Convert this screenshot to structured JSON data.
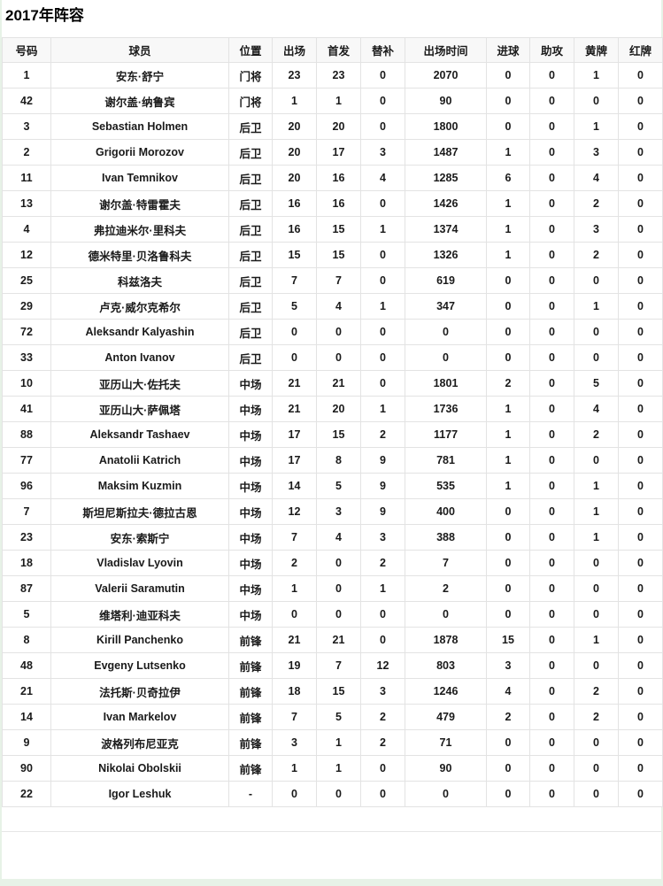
{
  "page": {
    "title": "2017年阵容"
  },
  "colors": {
    "page_background": "#e7f2e7",
    "card_background": "#ffffff",
    "header_background": "#f8f8f8",
    "border": "#e3e3e3",
    "text": "#1a1a1a"
  },
  "table": {
    "columns": [
      {
        "key": "number",
        "label": "号码"
      },
      {
        "key": "player",
        "label": "球员"
      },
      {
        "key": "position",
        "label": "位置"
      },
      {
        "key": "appearances",
        "label": "出场"
      },
      {
        "key": "starts",
        "label": "首发"
      },
      {
        "key": "subs",
        "label": "替补"
      },
      {
        "key": "minutes",
        "label": "出场时间"
      },
      {
        "key": "goals",
        "label": "进球"
      },
      {
        "key": "assists",
        "label": "助攻"
      },
      {
        "key": "yellow",
        "label": "黄牌"
      },
      {
        "key": "red",
        "label": "红牌"
      }
    ],
    "rows": [
      [
        "1",
        "安东·舒宁",
        "门将",
        "23",
        "23",
        "0",
        "2070",
        "0",
        "0",
        "1",
        "0"
      ],
      [
        "42",
        "谢尔盖·纳鲁宾",
        "门将",
        "1",
        "1",
        "0",
        "90",
        "0",
        "0",
        "0",
        "0"
      ],
      [
        "3",
        "Sebastian Holmen",
        "后卫",
        "20",
        "20",
        "0",
        "1800",
        "0",
        "0",
        "1",
        "0"
      ],
      [
        "2",
        "Grigorii Morozov",
        "后卫",
        "20",
        "17",
        "3",
        "1487",
        "1",
        "0",
        "3",
        "0"
      ],
      [
        "11",
        "Ivan Temnikov",
        "后卫",
        "20",
        "16",
        "4",
        "1285",
        "6",
        "0",
        "4",
        "0"
      ],
      [
        "13",
        "谢尔盖·特雷霍夫",
        "后卫",
        "16",
        "16",
        "0",
        "1426",
        "1",
        "0",
        "2",
        "0"
      ],
      [
        "4",
        "弗拉迪米尔·里科夫",
        "后卫",
        "16",
        "15",
        "1",
        "1374",
        "1",
        "0",
        "3",
        "0"
      ],
      [
        "12",
        "德米特里·贝洛鲁科夫",
        "后卫",
        "15",
        "15",
        "0",
        "1326",
        "1",
        "0",
        "2",
        "0"
      ],
      [
        "25",
        "科兹洛夫",
        "后卫",
        "7",
        "7",
        "0",
        "619",
        "0",
        "0",
        "0",
        "0"
      ],
      [
        "29",
        "卢克·威尔克希尔",
        "后卫",
        "5",
        "4",
        "1",
        "347",
        "0",
        "0",
        "1",
        "0"
      ],
      [
        "72",
        "Aleksandr Kalyashin",
        "后卫",
        "0",
        "0",
        "0",
        "0",
        "0",
        "0",
        "0",
        "0"
      ],
      [
        "33",
        "Anton Ivanov",
        "后卫",
        "0",
        "0",
        "0",
        "0",
        "0",
        "0",
        "0",
        "0"
      ],
      [
        "10",
        "亚历山大·佐托夫",
        "中场",
        "21",
        "21",
        "0",
        "1801",
        "2",
        "0",
        "5",
        "0"
      ],
      [
        "41",
        "亚历山大·萨佩塔",
        "中场",
        "21",
        "20",
        "1",
        "1736",
        "1",
        "0",
        "4",
        "0"
      ],
      [
        "88",
        "Aleksandr Tashaev",
        "中场",
        "17",
        "15",
        "2",
        "1177",
        "1",
        "0",
        "2",
        "0"
      ],
      [
        "77",
        "Anatolii Katrich",
        "中场",
        "17",
        "8",
        "9",
        "781",
        "1",
        "0",
        "0",
        "0"
      ],
      [
        "96",
        "Maksim Kuzmin",
        "中场",
        "14",
        "5",
        "9",
        "535",
        "1",
        "0",
        "1",
        "0"
      ],
      [
        "7",
        "斯坦尼斯拉夫·德拉古恩",
        "中场",
        "12",
        "3",
        "9",
        "400",
        "0",
        "0",
        "1",
        "0"
      ],
      [
        "23",
        "安东·索斯宁",
        "中场",
        "7",
        "4",
        "3",
        "388",
        "0",
        "0",
        "1",
        "0"
      ],
      [
        "18",
        "Vladislav Lyovin",
        "中场",
        "2",
        "0",
        "2",
        "7",
        "0",
        "0",
        "0",
        "0"
      ],
      [
        "87",
        "Valerii Saramutin",
        "中场",
        "1",
        "0",
        "1",
        "2",
        "0",
        "0",
        "0",
        "0"
      ],
      [
        "5",
        "维塔利·迪亚科夫",
        "中场",
        "0",
        "0",
        "0",
        "0",
        "0",
        "0",
        "0",
        "0"
      ],
      [
        "8",
        "Kirill Panchenko",
        "前锋",
        "21",
        "21",
        "0",
        "1878",
        "15",
        "0",
        "1",
        "0"
      ],
      [
        "48",
        "Evgeny Lutsenko",
        "前锋",
        "19",
        "7",
        "12",
        "803",
        "3",
        "0",
        "0",
        "0"
      ],
      [
        "21",
        "法托斯·贝奇拉伊",
        "前锋",
        "18",
        "15",
        "3",
        "1246",
        "4",
        "0",
        "2",
        "0"
      ],
      [
        "14",
        "Ivan Markelov",
        "前锋",
        "7",
        "5",
        "2",
        "479",
        "2",
        "0",
        "2",
        "0"
      ],
      [
        "9",
        "波格列布尼亚克",
        "前锋",
        "3",
        "1",
        "2",
        "71",
        "0",
        "0",
        "0",
        "0"
      ],
      [
        "90",
        "Nikolai Obolskii",
        "前锋",
        "1",
        "1",
        "0",
        "90",
        "0",
        "0",
        "0",
        "0"
      ],
      [
        "22",
        "Igor Leshuk",
        "-",
        "0",
        "0",
        "0",
        "0",
        "0",
        "0",
        "0",
        "0"
      ]
    ]
  }
}
